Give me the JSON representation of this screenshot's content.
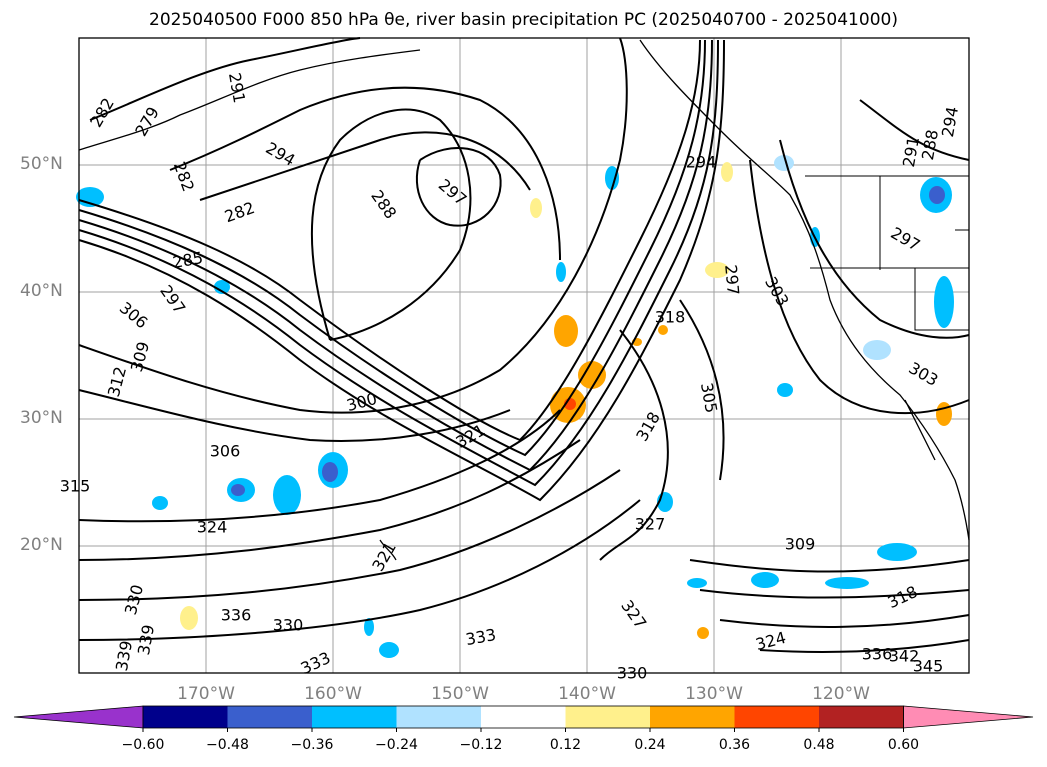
{
  "title": "2025040500 F000 850 hPa θe, river basin precipitation PC (2025040700 - 2025041000)",
  "map": {
    "projection": "equirectangular",
    "lon_range": [
      -180,
      -110
    ],
    "lat_range": [
      10,
      60
    ],
    "lat_labels": [
      "50°N",
      "40°N",
      "30°N",
      "20°N"
    ],
    "lon_labels": [
      "170°W",
      "160°W",
      "150°W",
      "140°W",
      "130°W",
      "120°W"
    ],
    "contour_labels": [
      "282",
      "279",
      "291",
      "282",
      "294",
      "282",
      "297",
      "288",
      "285",
      "297",
      "306",
      "309",
      "312",
      "300",
      "306",
      "315",
      "324",
      "321",
      "318",
      "318",
      "297",
      "303",
      "305",
      "294",
      "291",
      "288",
      "294",
      "297",
      "303",
      "309",
      "318",
      "327",
      "324",
      "330",
      "333",
      "333",
      "336",
      "339",
      "342",
      "345",
      "330",
      "336",
      "321",
      "327",
      "330",
      "339"
    ],
    "colors": {
      "contour": "#000000",
      "coast": "#000000",
      "grid": "#a0a0a0",
      "label_gray": "#808080"
    }
  },
  "colorbar": {
    "ticks": [
      "−0.60",
      "−0.48",
      "−0.36",
      "−0.24",
      "−0.12",
      "0.12",
      "0.24",
      "0.36",
      "0.48",
      "0.60"
    ],
    "colors": [
      "#9932cc",
      "#00008b",
      "#3a5fcd",
      "#00bfff",
      "#b0e2ff",
      "#ffffff",
      "#fff08c",
      "#ffa500",
      "#ff4500",
      "#b22222",
      "#ff8cb4"
    ]
  }
}
